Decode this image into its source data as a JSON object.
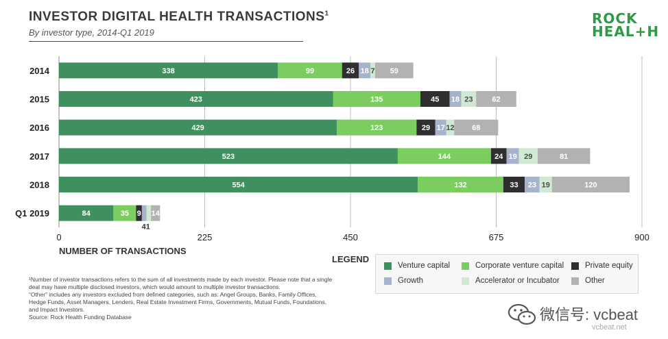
{
  "header": {
    "title": "INVESTOR DIGITAL HEALTH TRANSACTIONS",
    "title_sup": "1",
    "subtitle": "By investor type, 2014-Q1 2019",
    "logo_line1": "ROCK",
    "logo_line2": "HEAL+H"
  },
  "chart_data": {
    "type": "bar",
    "orientation": "horizontal",
    "stacked": true,
    "categories": [
      "2014",
      "2015",
      "2016",
      "2017",
      "2018",
      "Q1 2019"
    ],
    "series": [
      {
        "name": "Venture capital",
        "color": "#3f8f5f",
        "label_color": "#ffffff",
        "values": [
          338,
          423,
          429,
          523,
          554,
          84
        ]
      },
      {
        "name": "Corporate venture capital",
        "color": "#7ccd5f",
        "label_color": "#ffffff",
        "values": [
          99,
          135,
          123,
          144,
          132,
          35
        ]
      },
      {
        "name": "Private equity",
        "color": "#2f2f2f",
        "label_color": "#ffffff",
        "values": [
          26,
          45,
          29,
          24,
          33,
          9
        ]
      },
      {
        "name": "Growth",
        "color": "#a7b3cc",
        "label_color": "#ffffff",
        "values": [
          18,
          18,
          17,
          19,
          23,
          7
        ]
      },
      {
        "name": "Accelerator or Incubator",
        "color": "#cfe9d3",
        "label_color": "#4a4a4a",
        "values": [
          7,
          23,
          12,
          29,
          19,
          7
        ]
      },
      {
        "name": "Other",
        "color": "#b2b2b2",
        "label_color": "#ffffff",
        "values": [
          59,
          62,
          68,
          81,
          120,
          14
        ]
      }
    ],
    "bar_labels": [
      [
        "338",
        "99",
        "26",
        "18",
        "7",
        "59"
      ],
      [
        "423",
        "135",
        "45",
        "18",
        "23",
        "62"
      ],
      [
        "429",
        "123",
        "29",
        "17",
        "12",
        "68"
      ],
      [
        "523",
        "144",
        "24",
        "19",
        "29",
        "81"
      ],
      [
        "554",
        "132",
        "33",
        "23",
        "19",
        "120"
      ],
      [
        "84",
        "35",
        "9",
        "",
        "",
        "14"
      ]
    ],
    "extra_annotation": {
      "category": "Q1 2019",
      "text": "41"
    },
    "xlim": [
      0,
      900
    ],
    "xticks": [
      0,
      225,
      450,
      675,
      900
    ],
    "xlabel": "NUMBER OF TRANSACTIONS",
    "legend_title": "LEGEND",
    "grid": "vertical",
    "legend_position": "bottom-right"
  },
  "footnote": {
    "lines": [
      "¹Number of investor transactions refers to the sum of all investments made by each investor. Please note that a single deal may have multiple disclosed investors, which would amount to multiple investor transactions.",
      "“Other” includes any investors excluded from defined categories, such as: Angel Groups, Banks, Family Offices, Hedge Funds, Asset Managers, Lenders, Real Estate Investment Firms, Governments, Mutual Funds, Foundations, and Impact Investors.",
      "Source: Rock Health Funding Database"
    ]
  },
  "watermark": {
    "text": "微信号: vcbeat",
    "url": "vcbeat.net",
    "icon": "wechat-icon"
  }
}
